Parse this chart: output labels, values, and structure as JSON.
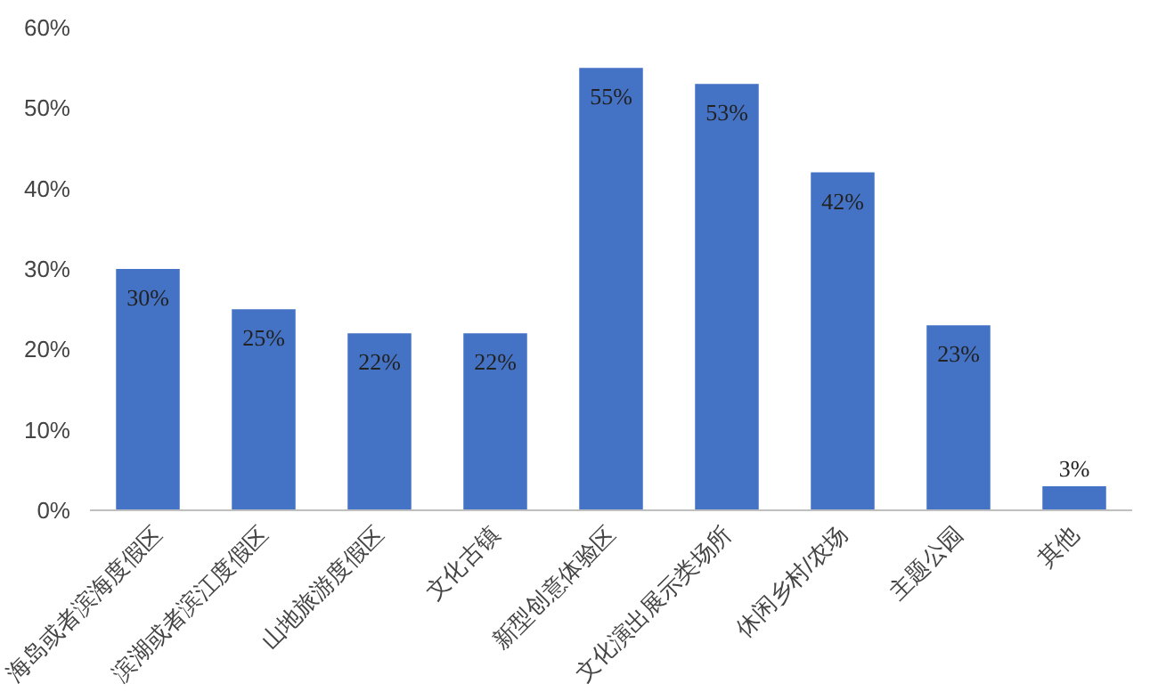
{
  "chart_data": {
    "type": "bar",
    "categories": [
      "海岛或者滨海度假区",
      "滨湖或者滨江度假区",
      "山地旅游度假区",
      "文化古镇",
      "新型创意体验区",
      "文化演出展示类场所",
      "休闲乡村/农场",
      "主题公园",
      "其他"
    ],
    "values": [
      30,
      25,
      22,
      22,
      55,
      53,
      42,
      23,
      3
    ],
    "color": "#4472c4",
    "ylim": [
      0,
      60
    ],
    "yticks": [
      {
        "value": 0,
        "label": "0%"
      },
      {
        "value": 10,
        "label": "10%"
      },
      {
        "value": 20,
        "label": "20%"
      },
      {
        "value": 30,
        "label": "30%"
      },
      {
        "value": 40,
        "label": "40%"
      },
      {
        "value": 50,
        "label": "50%"
      },
      {
        "value": 60,
        "label": "60%"
      }
    ],
    "value_labels": [
      "30%",
      "25%",
      "22%",
      "22%",
      "55%",
      "53%",
      "42%",
      "23%",
      "3%"
    ],
    "grid": false
  }
}
